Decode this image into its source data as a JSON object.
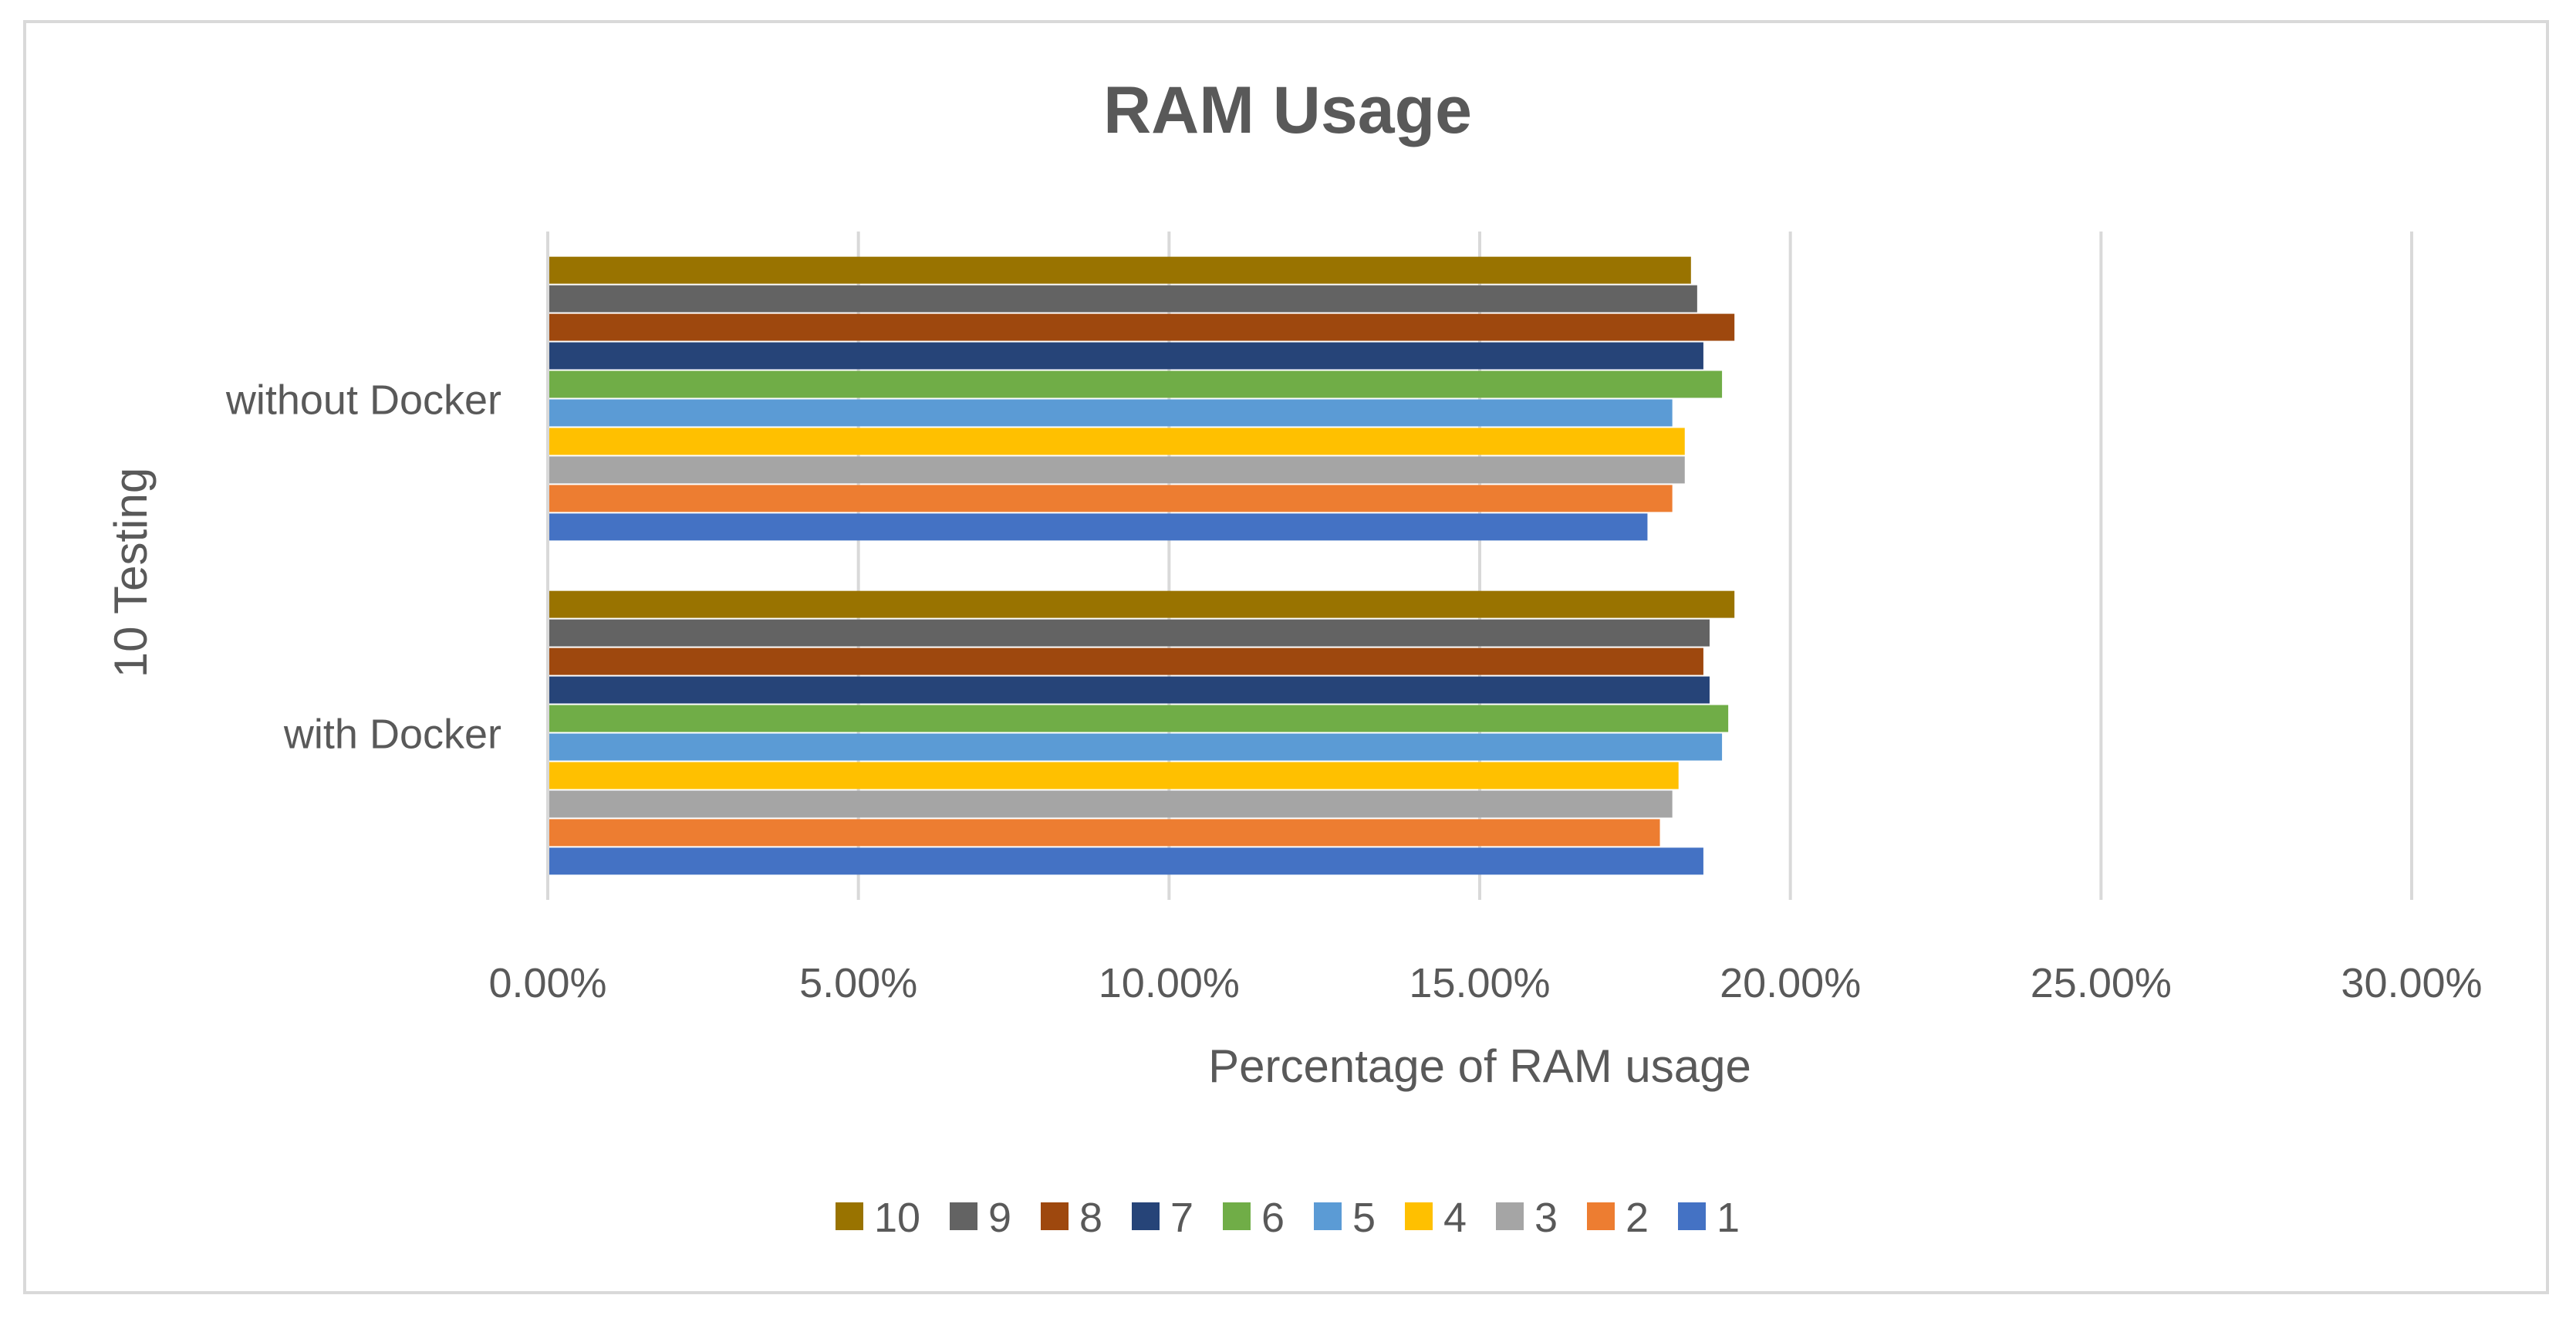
{
  "chart_data": {
    "type": "bar",
    "orientation": "horizontal",
    "title": "RAM Usage",
    "xlabel": "Percentage of RAM usage",
    "ylabel": "10 Testing",
    "categories": [
      "with Docker",
      "without Docker"
    ],
    "xlim": [
      0,
      30
    ],
    "xticks": [
      "0.00%",
      "5.00%",
      "10.00%",
      "15.00%",
      "20.00%",
      "25.00%",
      "30.00%"
    ],
    "xtick_values": [
      0,
      5,
      10,
      15,
      20,
      25,
      30
    ],
    "grid": "vertical major gridlines",
    "legend_position": "bottom",
    "legend_order": [
      "10",
      "9",
      "8",
      "7",
      "6",
      "5",
      "4",
      "3",
      "2",
      "1"
    ],
    "series": [
      {
        "name": "1",
        "color": "#4472C4",
        "values": [
          18.6,
          17.7
        ]
      },
      {
        "name": "2",
        "color": "#ED7D31",
        "values": [
          17.9,
          18.1
        ]
      },
      {
        "name": "3",
        "color": "#A5A5A5",
        "values": [
          18.1,
          18.3
        ]
      },
      {
        "name": "4",
        "color": "#FFC000",
        "values": [
          18.2,
          18.3
        ]
      },
      {
        "name": "5",
        "color": "#5B9BD5",
        "values": [
          18.9,
          18.1
        ]
      },
      {
        "name": "6",
        "color": "#70AD47",
        "values": [
          19.0,
          18.9
        ]
      },
      {
        "name": "7",
        "color": "#264478",
        "values": [
          18.7,
          18.6
        ]
      },
      {
        "name": "8",
        "color": "#9E480E",
        "values": [
          18.6,
          19.1
        ]
      },
      {
        "name": "9",
        "color": "#636363",
        "values": [
          18.7,
          18.5
        ]
      },
      {
        "name": "10",
        "color": "#997300",
        "values": [
          19.1,
          18.4
        ]
      }
    ]
  }
}
